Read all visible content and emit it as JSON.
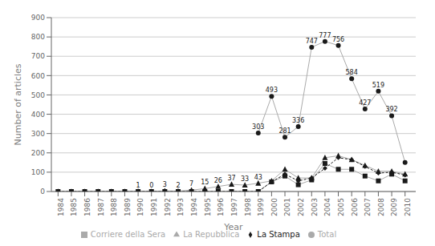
{
  "chart_data": {
    "type": "line",
    "xlabel": "Year",
    "ylabel": "Number of articles",
    "x": [
      1984,
      1985,
      1986,
      1987,
      1988,
      1989,
      1990,
      1991,
      1992,
      1993,
      1994,
      1995,
      1996,
      1997,
      1998,
      1999,
      2000,
      2001,
      2002,
      2003,
      2004,
      2005,
      2006,
      2007,
      2008,
      2009,
      2010
    ],
    "xlim": [
      1983.5,
      2010.8
    ],
    "xticks": [
      1984,
      1985,
      1986,
      1987,
      1988,
      1989,
      1990,
      1991,
      1992,
      1993,
      1994,
      1995,
      1996,
      1997,
      1998,
      1999,
      2000,
      2001,
      2002,
      2003,
      2004,
      2005,
      2006,
      2007,
      2008,
      2009,
      2010
    ],
    "ylim": [
      0,
      900
    ],
    "yticks": [
      0,
      100,
      200,
      300,
      400,
      500,
      600,
      700,
      800,
      900
    ],
    "grid": "y",
    "legend": "bottom",
    "color": "#1a1a1a",
    "series": [
      {
        "name": "Corriere della Sera",
        "color": "#aaaaaa",
        "marker": "square",
        "line_style": "solid",
        "values": [
          0,
          0,
          0,
          0,
          0,
          0,
          0,
          0,
          0,
          0,
          0,
          0,
          0,
          0,
          0,
          0,
          50,
          80,
          35,
          60,
          145,
          115,
          115,
          80,
          55,
          90,
          55
        ]
      },
      {
        "name": "La Repubblica",
        "color": "#aaaaaa",
        "marker": "triangle",
        "line_style": "solid",
        "values": [
          0,
          0,
          0,
          0,
          0,
          0,
          1,
          0,
          3,
          2,
          7,
          15,
          26,
          37,
          33,
          43,
          55,
          115,
          70,
          70,
          175,
          185,
          165,
          135,
          105,
          105,
          90
        ]
      },
      {
        "name": "La Stampa",
        "color": "#1a1a1a",
        "marker": "diamond",
        "line_style": "dashed",
        "values": [
          0,
          0,
          0,
          0,
          0,
          0,
          0,
          0,
          0,
          0,
          0,
          0,
          0,
          0,
          0,
          0,
          50,
          90,
          55,
          70,
          120,
          175,
          165,
          130,
          95,
          100,
          85
        ]
      },
      {
        "name": "Total",
        "color": "#aaaaaa",
        "marker": "circle",
        "line_style": "solid",
        "values": [
          null,
          null,
          null,
          null,
          null,
          null,
          null,
          null,
          null,
          null,
          null,
          null,
          null,
          null,
          null,
          303,
          493,
          281,
          336,
          747,
          777,
          756,
          584,
          427,
          519,
          392,
          150
        ]
      }
    ],
    "annotations": [
      {
        "x": 1990,
        "y": 1,
        "text": "1"
      },
      {
        "x": 1991,
        "y": 0,
        "text": "0"
      },
      {
        "x": 1992,
        "y": 3,
        "text": "3"
      },
      {
        "x": 1993,
        "y": 2,
        "text": "2"
      },
      {
        "x": 1994,
        "y": 7,
        "text": "7"
      },
      {
        "x": 1995,
        "y": 15,
        "text": "15"
      },
      {
        "x": 1996,
        "y": 26,
        "text": "26"
      },
      {
        "x": 1997,
        "y": 37,
        "text": "37"
      },
      {
        "x": 1998,
        "y": 33,
        "text": "33"
      },
      {
        "x": 1999,
        "y": 43,
        "text": "43"
      },
      {
        "x": 1999,
        "y": 303,
        "text": "303"
      },
      {
        "x": 2000,
        "y": 493,
        "text": "493"
      },
      {
        "x": 2001,
        "y": 281,
        "text": "281"
      },
      {
        "x": 2002,
        "y": 336,
        "text": "336"
      },
      {
        "x": 2003,
        "y": 747,
        "text": "747"
      },
      {
        "x": 2004,
        "y": 777,
        "text": "777"
      },
      {
        "x": 2005,
        "y": 756,
        "text": "756"
      },
      {
        "x": 2006,
        "y": 584,
        "text": "584"
      },
      {
        "x": 2007,
        "y": 427,
        "text": "427"
      },
      {
        "x": 2008,
        "y": 519,
        "text": "519"
      },
      {
        "x": 2009,
        "y": 392,
        "text": "392"
      }
    ]
  }
}
